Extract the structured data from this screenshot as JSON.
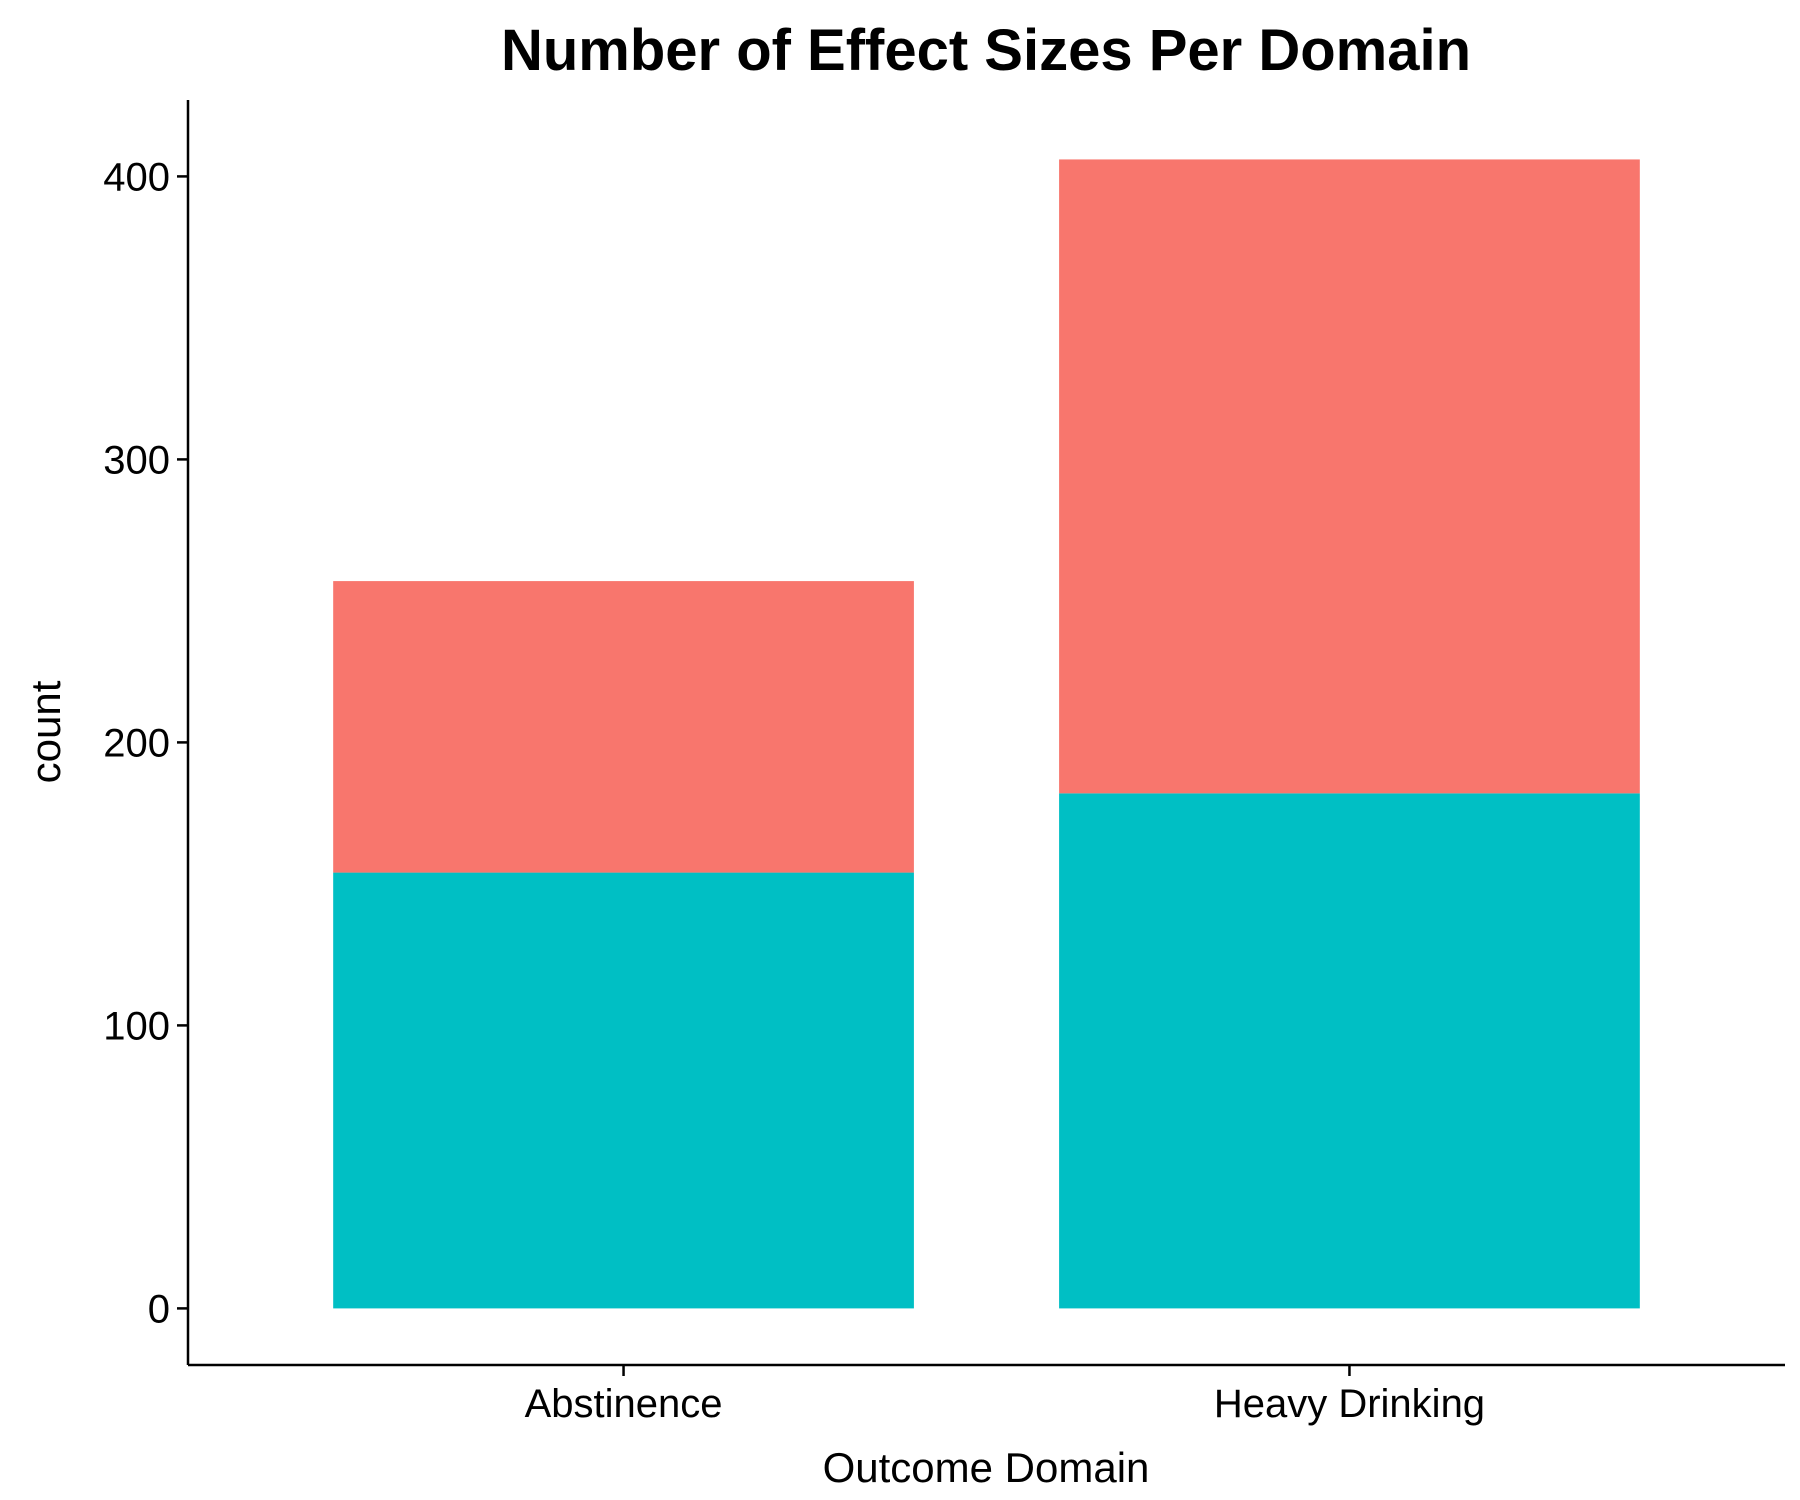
{
  "chart_data": {
    "type": "bar",
    "stacked": true,
    "title": "Number of Effect Sizes Per Domain",
    "xlabel": "Outcome Domain",
    "ylabel": "count",
    "categories": [
      "Abstinence",
      "Heavy Drinking"
    ],
    "series": [
      {
        "color": "#00BFC4",
        "values": [
          154,
          182
        ]
      },
      {
        "color": "#F8766D",
        "values": [
          103,
          224
        ]
      }
    ],
    "yticks": [
      0,
      100,
      200,
      300,
      400
    ],
    "ylim": [
      -20,
      427
    ],
    "grid": false,
    "legend": "none"
  }
}
